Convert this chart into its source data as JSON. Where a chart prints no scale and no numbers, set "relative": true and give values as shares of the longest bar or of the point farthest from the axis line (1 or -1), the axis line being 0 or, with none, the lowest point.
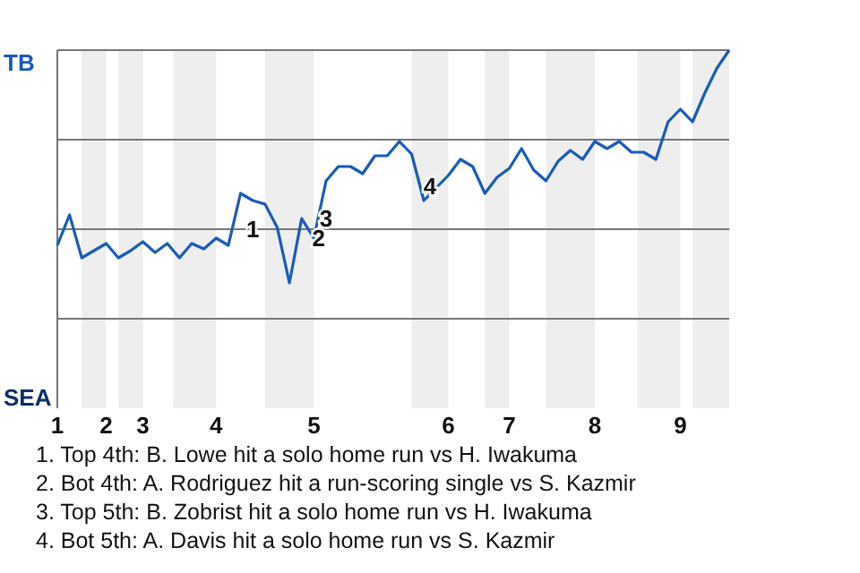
{
  "chart_data": {
    "type": "line",
    "relative": true,
    "categories": [
      "1",
      null,
      null,
      null,
      "2",
      null,
      null,
      "3",
      null,
      null,
      null,
      null,
      null,
      "4",
      null,
      null,
      null,
      null,
      null,
      null,
      null,
      "5",
      null,
      null,
      null,
      null,
      null,
      null,
      null,
      null,
      null,
      null,
      "6",
      null,
      null,
      null,
      null,
      "7",
      null,
      null,
      null,
      null,
      null,
      null,
      "8",
      null,
      null,
      null,
      null,
      null,
      null,
      "9",
      null,
      null,
      null,
      null
    ],
    "grid": "y",
    "marker": "none",
    "line_style": "solid",
    "series": [
      {
        "color": "#1a5bb8",
        "values": [
          0.455,
          0.54,
          0.42,
          0.44,
          0.46,
          0.42,
          0.44,
          0.465,
          0.435,
          0.46,
          0.42,
          0.46,
          0.445,
          0.475,
          0.455,
          0.6,
          0.58,
          0.57,
          0.505,
          0.35,
          0.53,
          0.475,
          0.635,
          0.675,
          0.675,
          0.655,
          0.705,
          0.705,
          0.745,
          0.71,
          0.58,
          0.615,
          0.65,
          0.695,
          0.675,
          0.6,
          0.645,
          0.67,
          0.725,
          0.665,
          0.635,
          0.69,
          0.72,
          0.695,
          0.745,
          0.725,
          0.745,
          0.715,
          0.715,
          0.695,
          0.8,
          0.835,
          0.8,
          0.88,
          0.95,
          1
        ]
      }
    ],
    "annotations": [
      "TB",
      "SEA",
      "1",
      "2",
      "3",
      "4",
      "1. Top 4th: B. Lowe hit a solo home run vs H. Iwakuma",
      "2. Bot 4th: A. Rodriguez hit a run-scoring single vs S. Kazmir",
      "3. Top 5th: B. Zobrist hit a solo home run vs H. Iwakuma",
      "4. Bot 5th: A. Davis hit a solo home run vs S. Kazmir"
    ]
  }
}
